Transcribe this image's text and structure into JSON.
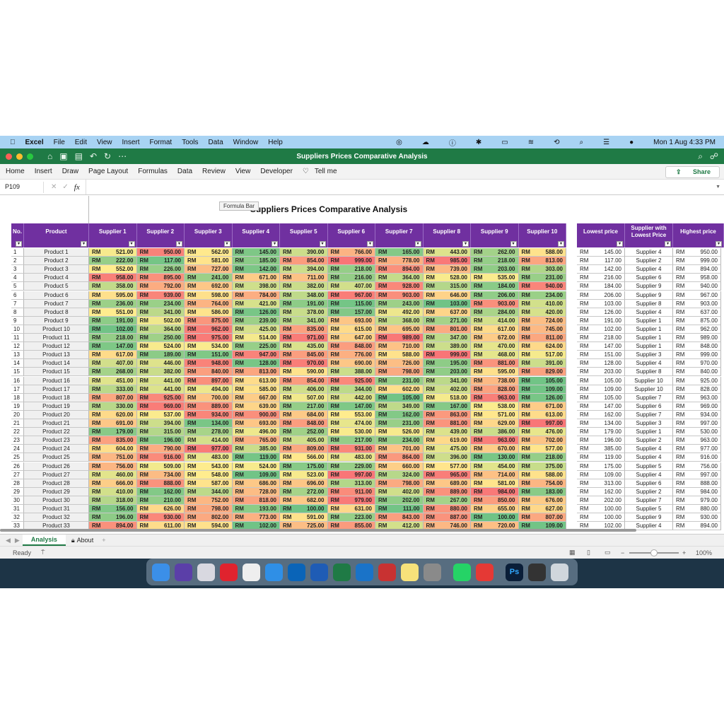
{
  "menubar": {
    "app": "Excel",
    "items": [
      "File",
      "Edit",
      "View",
      "Insert",
      "Format",
      "Tools",
      "Data",
      "Window",
      "Help"
    ],
    "datetime": "Mon 1 Aug  4:33 PM"
  },
  "window": {
    "title": "Suppliers Prices Comparative Analysis"
  },
  "ribbon": {
    "tabs": [
      "Home",
      "Insert",
      "Draw",
      "Page Layout",
      "Formulas",
      "Data",
      "Review",
      "View",
      "Developer"
    ],
    "tell_me": "Tell me",
    "share": "Share"
  },
  "formula_bar": {
    "name_box": "P109",
    "fx": "fx",
    "value": "",
    "tooltip": "Formula Bar"
  },
  "sheet": {
    "title": "Suppliers Prices Comparative Analysis",
    "currency": "RM",
    "headers": {
      "no": "No.",
      "product": "Product",
      "suppliers": [
        "Supplier 1",
        "Supplier 2",
        "Supplier 3",
        "Supplier 4",
        "Supplier 5",
        "Supplier 6",
        "Supplier 7",
        "Supplier 8",
        "Supplier 9",
        "Supplier 10"
      ],
      "lowest": "Lowest price",
      "lowest_supplier": "Supplier with Lowest Price",
      "highest": "Highest price"
    },
    "colors": {
      "header": "#7030a0",
      "low": "#63be7b",
      "mid": "#ffeb84",
      "high": "#f8696b"
    },
    "rows": [
      {
        "no": 1,
        "product": "Product 1",
        "prices": [
          521,
          950,
          562,
          145,
          390,
          766,
          165,
          443,
          262,
          588
        ],
        "lowest": 145,
        "lowest_supplier": "Supplier 4",
        "highest": 950
      },
      {
        "no": 2,
        "product": "Product 2",
        "prices": [
          222,
          117,
          581,
          185,
          854,
          999,
          778,
          985,
          218,
          813
        ],
        "lowest": 117,
        "lowest_supplier": "Supplier 2",
        "highest": 999
      },
      {
        "no": 3,
        "product": "Product 3",
        "prices": [
          552,
          226,
          727,
          142,
          394,
          218,
          894,
          739,
          203,
          303
        ],
        "lowest": 142,
        "lowest_supplier": "Supplier 4",
        "highest": 894
      },
      {
        "no": 4,
        "product": "Product 4",
        "prices": [
          958,
          895,
          241,
          671,
          711,
          216,
          364,
          528,
          535,
          231
        ],
        "lowest": 216,
        "lowest_supplier": "Supplier 6",
        "highest": 958
      },
      {
        "no": 5,
        "product": "Product 5",
        "prices": [
          358,
          792,
          692,
          398,
          382,
          407,
          928,
          315,
          184,
          940
        ],
        "lowest": 184,
        "lowest_supplier": "Supplier 9",
        "highest": 940
      },
      {
        "no": 6,
        "product": "Product 6",
        "prices": [
          595,
          939,
          598,
          784,
          348,
          967,
          903,
          646,
          206,
          234
        ],
        "lowest": 206,
        "lowest_supplier": "Supplier 9",
        "highest": 967
      },
      {
        "no": 7,
        "product": "Product 7",
        "prices": [
          236,
          234,
          764,
          421,
          191,
          115,
          243,
          103,
          903,
          410
        ],
        "lowest": 103,
        "lowest_supplier": "Supplier 8",
        "highest": 903
      },
      {
        "no": 8,
        "product": "Product 8",
        "prices": [
          551,
          341,
          586,
          126,
          378,
          157,
          492,
          637,
          284,
          420
        ],
        "lowest": 126,
        "lowest_supplier": "Supplier 4",
        "highest": 637
      },
      {
        "no": 9,
        "product": "Product 9",
        "prices": [
          191,
          502,
          875,
          239,
          341,
          693,
          368,
          271,
          414,
          724
        ],
        "lowest": 191,
        "lowest_supplier": "Supplier 1",
        "highest": 875
      },
      {
        "no": 10,
        "product": "Product 10",
        "prices": [
          102,
          364,
          962,
          425,
          835,
          615,
          695,
          801,
          617,
          745
        ],
        "lowest": 102,
        "lowest_supplier": "Supplier 1",
        "highest": 962
      },
      {
        "no": 11,
        "product": "Product 11",
        "prices": [
          218,
          250,
          975,
          514,
          971,
          647,
          989,
          347,
          672,
          811
        ],
        "lowest": 218,
        "lowest_supplier": "Supplier 1",
        "highest": 989
      },
      {
        "no": 12,
        "product": "Product 12",
        "prices": [
          147,
          524,
          534,
          225,
          435,
          848,
          710,
          389,
          470,
          624
        ],
        "lowest": 147,
        "lowest_supplier": "Supplier 1",
        "highest": 848
      },
      {
        "no": 13,
        "product": "Product 13",
        "prices": [
          617,
          189,
          151,
          947,
          845,
          776,
          588,
          999,
          468,
          517
        ],
        "lowest": 151,
        "lowest_supplier": "Supplier 3",
        "highest": 999
      },
      {
        "no": 14,
        "product": "Product 14",
        "prices": [
          407,
          446,
          948,
          128,
          970,
          690,
          726,
          195,
          881,
          391
        ],
        "lowest": 128,
        "lowest_supplier": "Supplier 4",
        "highest": 970
      },
      {
        "no": 15,
        "product": "Product 15",
        "prices": [
          268,
          382,
          840,
          813,
          590,
          388,
          798,
          203,
          595,
          829
        ],
        "lowest": 203,
        "lowest_supplier": "Supplier 8",
        "highest": 840
      },
      {
        "no": 16,
        "product": "Product 16",
        "prices": [
          451,
          441,
          897,
          613,
          854,
          925,
          231,
          341,
          738,
          105
        ],
        "lowest": 105,
        "lowest_supplier": "Supplier 10",
        "highest": 925
      },
      {
        "no": 17,
        "product": "Product 17",
        "prices": [
          333,
          441,
          494,
          585,
          406,
          344,
          602,
          402,
          828,
          109
        ],
        "lowest": 109,
        "lowest_supplier": "Supplier 10",
        "highest": 828
      },
      {
        "no": 18,
        "product": "Product 18",
        "prices": [
          807,
          925,
          700,
          667,
          507,
          442,
          105,
          518,
          963,
          126
        ],
        "lowest": 105,
        "lowest_supplier": "Supplier 7",
        "highest": 963
      },
      {
        "no": 19,
        "product": "Product 19",
        "prices": [
          330,
          969,
          889,
          639,
          217,
          147,
          349,
          167,
          538,
          671
        ],
        "lowest": 147,
        "lowest_supplier": "Supplier 6",
        "highest": 969
      },
      {
        "no": 20,
        "product": "Product 20",
        "prices": [
          620,
          537,
          934,
          900,
          684,
          553,
          162,
          863,
          571,
          613
        ],
        "lowest": 162,
        "lowest_supplier": "Supplier 7",
        "highest": 934
      },
      {
        "no": 21,
        "product": "Product 21",
        "prices": [
          691,
          394,
          134,
          693,
          848,
          474,
          231,
          881,
          629,
          997
        ],
        "lowest": 134,
        "lowest_supplier": "Supplier 3",
        "highest": 997
      },
      {
        "no": 22,
        "product": "Product 22",
        "prices": [
          179,
          315,
          278,
          496,
          252,
          530,
          526,
          439,
          386,
          476
        ],
        "lowest": 179,
        "lowest_supplier": "Supplier 1",
        "highest": 530
      },
      {
        "no": 23,
        "product": "Product 23",
        "prices": [
          835,
          196,
          414,
          765,
          405,
          217,
          234,
          619,
          963,
          702
        ],
        "lowest": 196,
        "lowest_supplier": "Supplier 2",
        "highest": 963
      },
      {
        "no": 24,
        "product": "Product 24",
        "prices": [
          604,
          790,
          977,
          385,
          809,
          931,
          701,
          475,
          670,
          577
        ],
        "lowest": 385,
        "lowest_supplier": "Supplier 4",
        "highest": 977
      },
      {
        "no": 25,
        "product": "Product 25",
        "prices": [
          751,
          916,
          483,
          119,
          566,
          483,
          864,
          396,
          130,
          218
        ],
        "lowest": 119,
        "lowest_supplier": "Supplier 4",
        "highest": 916
      },
      {
        "no": 26,
        "product": "Product 26",
        "prices": [
          756,
          509,
          543,
          524,
          175,
          229,
          660,
          577,
          454,
          375
        ],
        "lowest": 175,
        "lowest_supplier": "Supplier 5",
        "highest": 756
      },
      {
        "no": 27,
        "product": "Product 27",
        "prices": [
          460,
          734,
          548,
          109,
          523,
          997,
          324,
          965,
          714,
          588
        ],
        "lowest": 109,
        "lowest_supplier": "Supplier 4",
        "highest": 997
      },
      {
        "no": 28,
        "product": "Product 28",
        "prices": [
          666,
          888,
          587,
          686,
          696,
          313,
          798,
          689,
          581,
          754
        ],
        "lowest": 313,
        "lowest_supplier": "Supplier 6",
        "highest": 888
      },
      {
        "no": 29,
        "product": "Product 29",
        "prices": [
          410,
          162,
          344,
          728,
          272,
          911,
          402,
          889,
          984,
          183
        ],
        "lowest": 162,
        "lowest_supplier": "Supplier 2",
        "highest": 984
      },
      {
        "no": 30,
        "product": "Product 30",
        "prices": [
          318,
          210,
          752,
          818,
          682,
          979,
          202,
          267,
          850,
          676
        ],
        "lowest": 202,
        "lowest_supplier": "Supplier 7",
        "highest": 979
      },
      {
        "no": 31,
        "product": "Product 31",
        "prices": [
          156,
          626,
          798,
          193,
          100,
          631,
          111,
          880,
          655,
          627
        ],
        "lowest": 100,
        "lowest_supplier": "Supplier 5",
        "highest": 880
      },
      {
        "no": 32,
        "product": "Product 32",
        "prices": [
          196,
          930,
          802,
          773,
          591,
          223,
          843,
          887,
          100,
          807
        ],
        "lowest": 100,
        "lowest_supplier": "Supplier 9",
        "highest": 930
      },
      {
        "no": 33,
        "product": "Product 33",
        "prices": [
          894,
          611,
          594,
          102,
          725,
          855,
          412,
          746,
          720,
          109
        ],
        "lowest": 102,
        "lowest_supplier": "Supplier 4",
        "highest": 894
      }
    ]
  },
  "sheet_tabs": [
    "Analysis",
    "About"
  ],
  "status": {
    "ready": "Ready",
    "zoom": "100%"
  },
  "dock": [
    "Finder",
    "Siri",
    "Launchpad",
    "Opera",
    "Files",
    "Safari",
    "Outlook",
    "Word",
    "Excel",
    "VS Code",
    "CCleaner",
    "Notes",
    "System Preferences",
    "WhatsApp",
    "AnyDesk",
    "Photoshop",
    "Calendar",
    "Trash"
  ]
}
